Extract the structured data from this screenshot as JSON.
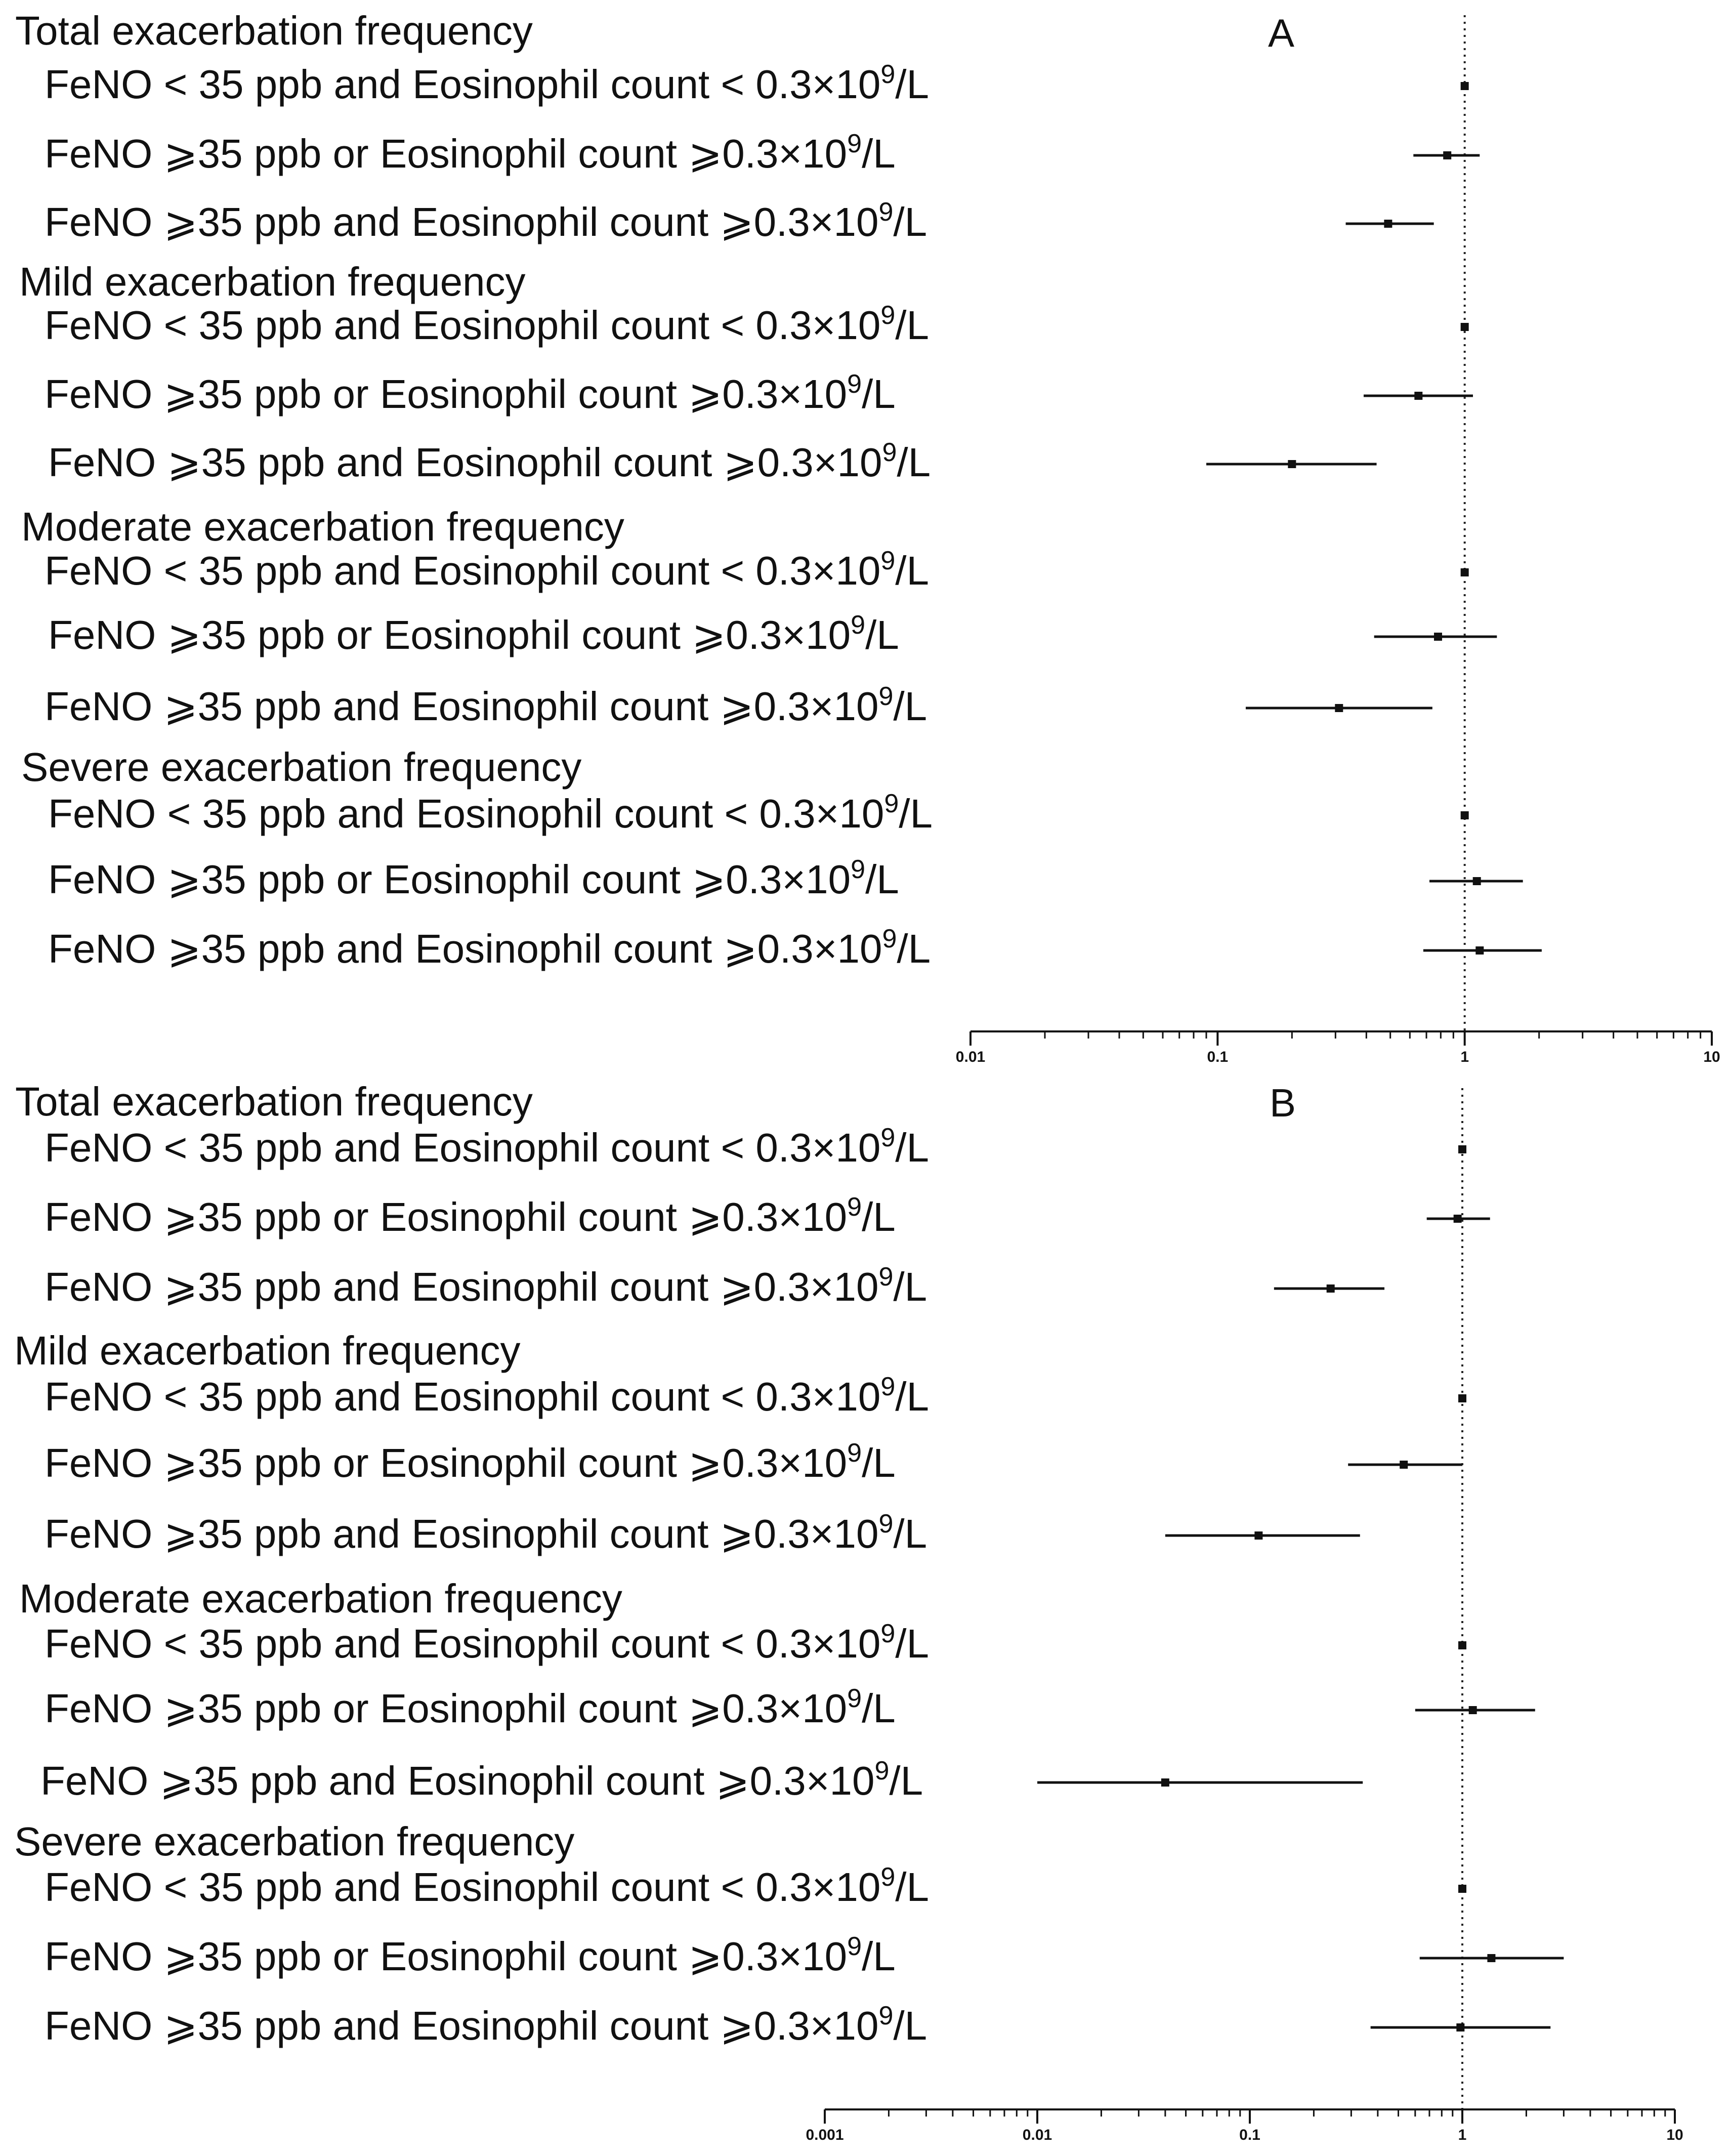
{
  "chart_data": [
    {
      "type": "forest",
      "panel_label": "A",
      "x_scale": "log",
      "xlim": [
        0.01,
        10
      ],
      "reference_line": 1,
      "x_ticks": [
        "0.01",
        "0.1",
        "1",
        "10"
      ],
      "groups": [
        {
          "title": "Total exacerbation frequency",
          "rows": [
            {
              "label": "FeNO < 35 ppb and Eosinophil count < 0.3×10",
              "sup": "9",
              "unit": "/L",
              "est": 1.0,
              "lo": 1.0,
              "hi": 1.0
            },
            {
              "label": "FeNO ⩾35 ppb or Eosinophil count ⩾0.3×10",
              "sup": "9",
              "unit": "/L",
              "est": 0.85,
              "lo": 0.62,
              "hi": 1.15
            },
            {
              "label": "FeNO ⩾35 ppb and Eosinophil count ⩾0.3×10",
              "sup": "9",
              "unit": "/L",
              "est": 0.49,
              "lo": 0.33,
              "hi": 0.75
            }
          ]
        },
        {
          "title": "Mild exacerbation frequency",
          "rows": [
            {
              "label": "FeNO < 35 ppb and Eosinophil count < 0.3×10",
              "sup": "9",
              "unit": "/L",
              "est": 1.0,
              "lo": 1.0,
              "hi": 1.0
            },
            {
              "label": "FeNO ⩾35 ppb or Eosinophil count ⩾0.3×10",
              "sup": "9",
              "unit": "/L",
              "est": 0.65,
              "lo": 0.39,
              "hi": 1.08
            },
            {
              "label": "FeNO ⩾35 ppb and Eosinophil count ⩾0.3×10",
              "sup": "9",
              "unit": "/L",
              "est": 0.2,
              "lo": 0.09,
              "hi": 0.44
            }
          ]
        },
        {
          "title": "Moderate exacerbation frequency",
          "rows": [
            {
              "label": "FeNO < 35 ppb and Eosinophil count < 0.3×10",
              "sup": "9",
              "unit": "/L",
              "est": 1.0,
              "lo": 1.0,
              "hi": 1.0
            },
            {
              "label": "FeNO ⩾35 ppb or Eosinophil count ⩾0.3×10",
              "sup": "9",
              "unit": "/L",
              "est": 0.78,
              "lo": 0.43,
              "hi": 1.35
            },
            {
              "label": "FeNO ⩾35 ppb and Eosinophil count ⩾0.3×10",
              "sup": "9",
              "unit": "/L",
              "est": 0.31,
              "lo": 0.13,
              "hi": 0.74
            }
          ]
        },
        {
          "title": "Severe exacerbation frequency",
          "rows": [
            {
              "label": "FeNO < 35 ppb and Eosinophil count < 0.3×10",
              "sup": "9",
              "unit": "/L",
              "est": 1.0,
              "lo": 1.0,
              "hi": 1.0
            },
            {
              "label": "FeNO ⩾35 ppb or Eosinophil count ⩾0.3×10",
              "sup": "9",
              "unit": "/L",
              "est": 1.12,
              "lo": 0.72,
              "hi": 1.72
            },
            {
              "label": "FeNO ⩾35 ppb and Eosinophil count ⩾0.3×10",
              "sup": "9",
              "unit": "/L",
              "est": 1.15,
              "lo": 0.68,
              "hi": 2.05
            }
          ]
        }
      ]
    },
    {
      "type": "forest",
      "panel_label": "B",
      "x_scale": "log",
      "xlim": [
        0.001,
        10
      ],
      "reference_line": 1,
      "x_ticks": [
        "0.001",
        "0.01",
        "0.1",
        "1",
        "10"
      ],
      "groups": [
        {
          "title": "Total exacerbation frequency",
          "rows": [
            {
              "label": "FeNO < 35 ppb and Eosinophil count < 0.3×10",
              "sup": "9",
              "unit": "/L",
              "est": 1.0,
              "lo": 1.0,
              "hi": 1.0
            },
            {
              "label": "FeNO ⩾35 ppb or Eosinophil count ⩾0.3×10",
              "sup": "9",
              "unit": "/L",
              "est": 0.95,
              "lo": 0.68,
              "hi": 1.35
            },
            {
              "label": "FeNO ⩾35 ppb and Eosinophil count ⩾0.3×10",
              "sup": "9",
              "unit": "/L",
              "est": 0.24,
              "lo": 0.13,
              "hi": 0.43
            }
          ]
        },
        {
          "title": "Mild exacerbation frequency",
          "rows": [
            {
              "label": "FeNO < 35 ppb and Eosinophil count < 0.3×10",
              "sup": "9",
              "unit": "/L",
              "est": 1.0,
              "lo": 1.0,
              "hi": 1.0
            },
            {
              "label": "FeNO ⩾35 ppb or Eosinophil count ⩾0.3×10",
              "sup": "9",
              "unit": "/L",
              "est": 0.53,
              "lo": 0.29,
              "hi": 1.0
            },
            {
              "label": "FeNO ⩾35 ppb and Eosinophil count ⩾0.3×10",
              "sup": "9",
              "unit": "/L",
              "est": 0.11,
              "lo": 0.04,
              "hi": 0.33
            }
          ]
        },
        {
          "title": "Moderate exacerbation frequency",
          "rows": [
            {
              "label": "FeNO < 35 ppb and Eosinophil count < 0.3×10",
              "sup": "9",
              "unit": "/L",
              "est": 1.0,
              "lo": 1.0,
              "hi": 1.0
            },
            {
              "label": "FeNO ⩾35 ppb or Eosinophil count ⩾0.3×10",
              "sup": "9",
              "unit": "/L",
              "est": 1.12,
              "lo": 0.6,
              "hi": 2.2
            },
            {
              "label": "FeNO ⩾35 ppb and Eosinophil count ⩾0.3×10",
              "sup": "9",
              "unit": "/L",
              "est": 0.04,
              "lo": 0.01,
              "hi": 0.34
            }
          ]
        },
        {
          "title": "Severe exacerbation frequency",
          "rows": [
            {
              "label": "FeNO < 35 ppb and Eosinophil count < 0.3×10",
              "sup": "9",
              "unit": "/L",
              "est": 1.0,
              "lo": 1.0,
              "hi": 1.0
            },
            {
              "label": "FeNO ⩾35 ppb or Eosinophil count ⩾0.3×10",
              "sup": "9",
              "unit": "/L",
              "est": 1.37,
              "lo": 0.63,
              "hi": 3.0
            },
            {
              "label": "FeNO ⩾35 ppb and Eosinophil count ⩾0.3×10",
              "sup": "9",
              "unit": "/L",
              "est": 0.98,
              "lo": 0.37,
              "hi": 2.6
            }
          ]
        }
      ]
    }
  ]
}
